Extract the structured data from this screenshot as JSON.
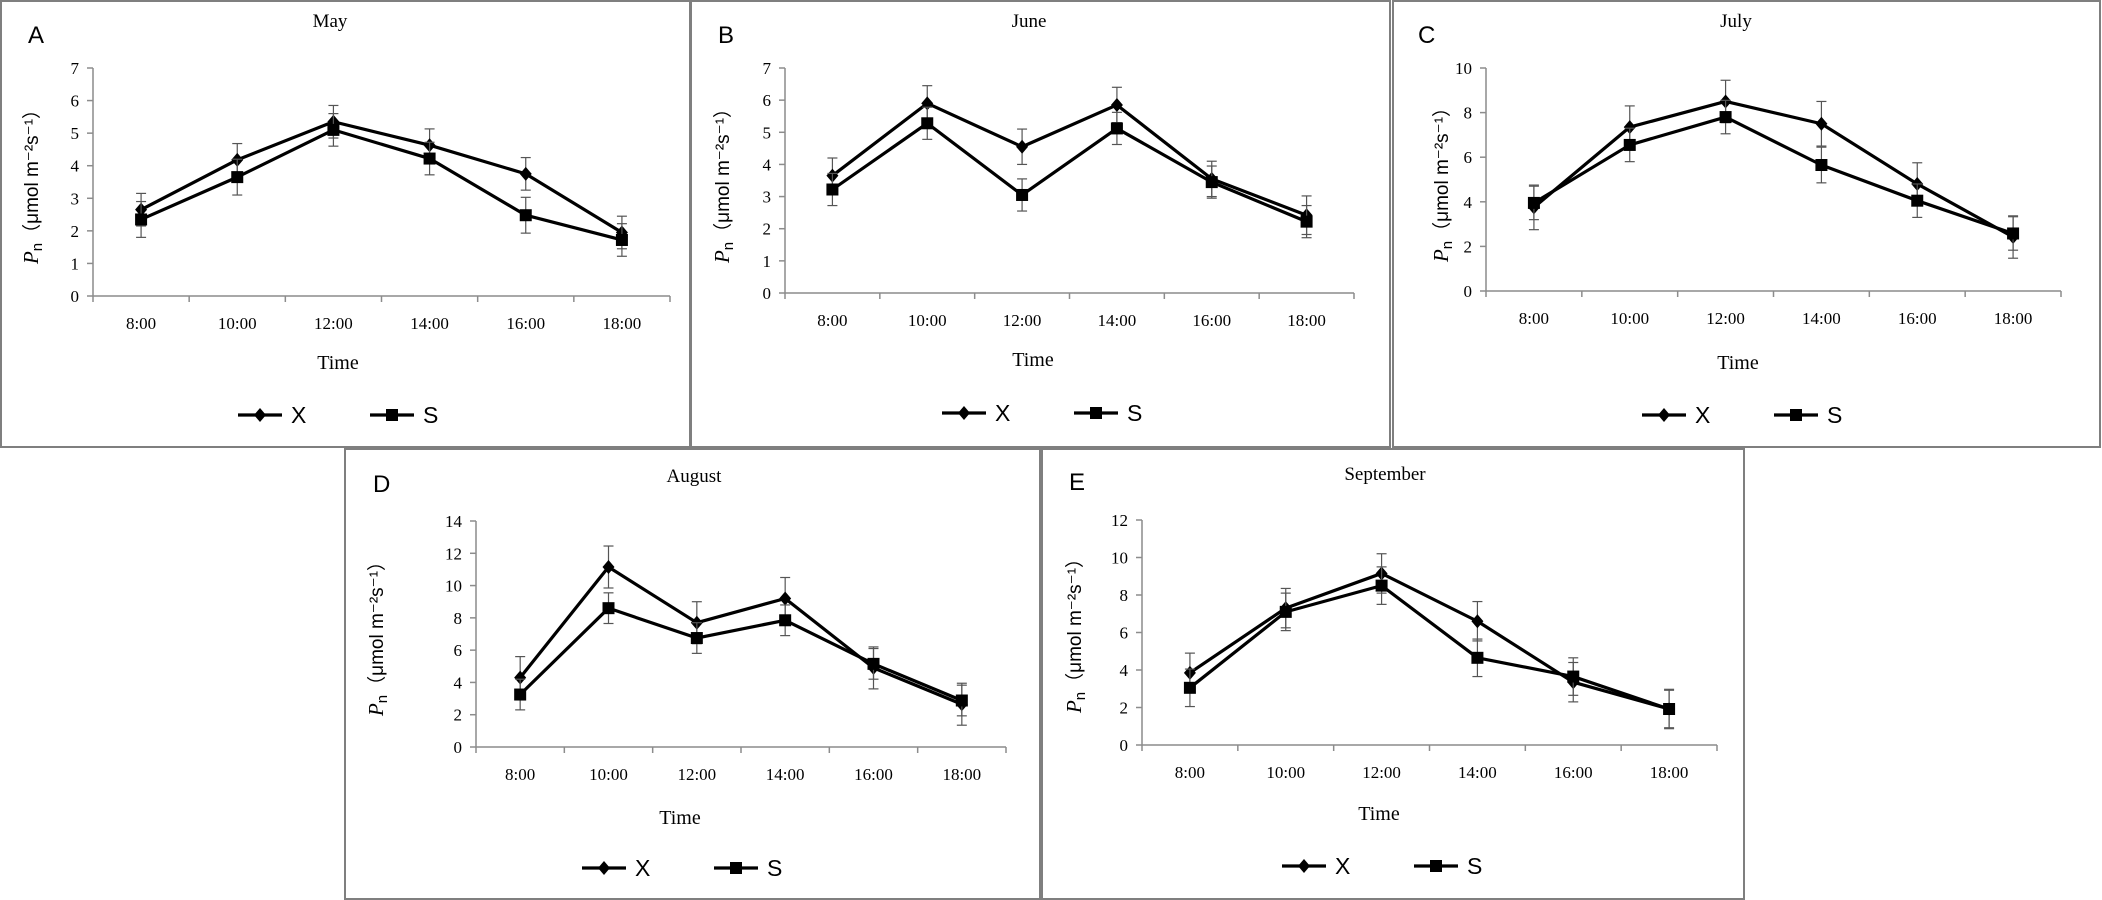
{
  "chart_data": [
    {
      "type": "line",
      "panel_label": "A",
      "title": "May",
      "xlabel": "Time",
      "ylabel": {
        "symbol": "P",
        "subscript": "n",
        "units": "（μmol m⁻²s⁻¹）"
      },
      "categories": [
        "8:00",
        "10:00",
        "12:00",
        "14:00",
        "16:00",
        "18:00"
      ],
      "ylim": [
        0,
        7
      ],
      "ystep": 1,
      "yticks": [
        "0",
        "1",
        "2",
        "3",
        "4",
        "5",
        "6",
        "7"
      ],
      "legend": "bottom",
      "series": [
        {
          "name": "X",
          "marker": "diamond",
          "values": [
            2.65,
            4.18,
            5.35,
            4.63,
            3.75,
            1.95
          ],
          "err": [
            0.5,
            0.5,
            0.5,
            0.5,
            0.5,
            0.5
          ]
        },
        {
          "name": "S",
          "marker": "square",
          "values": [
            2.35,
            3.65,
            5.1,
            4.22,
            2.48,
            1.72
          ],
          "err": [
            0.55,
            0.55,
            0.5,
            0.5,
            0.55,
            0.5
          ]
        }
      ]
    },
    {
      "type": "line",
      "panel_label": "B",
      "title": "June",
      "xlabel": "Time",
      "ylabel": {
        "symbol": "P",
        "subscript": "n",
        "units": "（μmol m⁻²s⁻¹）"
      },
      "categories": [
        "8:00",
        "10:00",
        "12:00",
        "14:00",
        "16:00",
        "18:00"
      ],
      "ylim": [
        0,
        7
      ],
      "ystep": 1,
      "yticks": [
        "0",
        "1",
        "2",
        "3",
        "4",
        "5",
        "6",
        "7"
      ],
      "legend": "bottom",
      "series": [
        {
          "name": "X",
          "marker": "diamond",
          "values": [
            3.65,
            5.9,
            4.55,
            5.85,
            3.55,
            2.42
          ],
          "err": [
            0.55,
            0.55,
            0.55,
            0.55,
            0.55,
            0.6
          ]
        },
        {
          "name": "S",
          "marker": "square",
          "values": [
            3.22,
            5.28,
            3.05,
            5.12,
            3.45,
            2.22
          ],
          "err": [
            0.5,
            0.5,
            0.5,
            0.5,
            0.5,
            0.5
          ]
        }
      ]
    },
    {
      "type": "line",
      "panel_label": "C",
      "title": "July",
      "xlabel": "Time",
      "ylabel": {
        "symbol": "P",
        "subscript": "n",
        "units": "（μmol m⁻²s⁻¹）"
      },
      "categories": [
        "8:00",
        "10:00",
        "12:00",
        "14:00",
        "16:00",
        "18:00"
      ],
      "ylim": [
        0,
        10
      ],
      "ystep": 2,
      "yticks": [
        "0",
        "2",
        "4",
        "6",
        "8",
        "10"
      ],
      "legend": "bottom",
      "series": [
        {
          "name": "X",
          "marker": "diamond",
          "values": [
            3.75,
            7.35,
            8.5,
            7.5,
            4.8,
            2.42
          ],
          "err": [
            1.0,
            0.95,
            0.95,
            1.0,
            0.95,
            0.95
          ]
        },
        {
          "name": "S",
          "marker": "square",
          "values": [
            3.95,
            6.55,
            7.8,
            5.65,
            4.05,
            2.58
          ],
          "err": [
            0.75,
            0.75,
            0.75,
            0.8,
            0.75,
            0.75
          ]
        }
      ]
    },
    {
      "type": "line",
      "panel_label": "D",
      "title": "August",
      "xlabel": "Time",
      "ylabel": {
        "symbol": "P",
        "subscript": "n",
        "units": "（μmol m⁻²s⁻¹）"
      },
      "categories": [
        "8:00",
        "10:00",
        "12:00",
        "14:00",
        "16:00",
        "18:00"
      ],
      "ylim": [
        0,
        14
      ],
      "ystep": 2,
      "yticks": [
        "0",
        "2",
        "4",
        "6",
        "8",
        "10",
        "12",
        "14"
      ],
      "legend": "bottom",
      "series": [
        {
          "name": "X",
          "marker": "diamond",
          "values": [
            4.3,
            11.15,
            7.7,
            9.2,
            4.9,
            2.65
          ],
          "err": [
            1.3,
            1.3,
            1.3,
            1.3,
            1.3,
            1.3
          ]
        },
        {
          "name": "S",
          "marker": "square",
          "values": [
            3.25,
            8.6,
            6.75,
            7.85,
            5.15,
            2.88
          ],
          "err": [
            0.95,
            0.95,
            0.95,
            0.95,
            0.95,
            0.95
          ]
        }
      ]
    },
    {
      "type": "line",
      "panel_label": "E",
      "title": "September",
      "xlabel": "Time",
      "ylabel": {
        "symbol": "P",
        "subscript": "n",
        "units": "（μmol m⁻²s⁻¹）"
      },
      "categories": [
        "8:00",
        "10:00",
        "12:00",
        "14:00",
        "16:00",
        "18:00"
      ],
      "ylim": [
        0,
        12
      ],
      "ystep": 2,
      "yticks": [
        "0",
        "2",
        "4",
        "6",
        "8",
        "10",
        "12"
      ],
      "legend": "bottom",
      "series": [
        {
          "name": "X",
          "marker": "diamond",
          "values": [
            3.85,
            7.3,
            9.15,
            6.6,
            3.35,
            1.92
          ],
          "err": [
            1.05,
            1.05,
            1.05,
            1.05,
            1.05,
            1.05
          ]
        },
        {
          "name": "S",
          "marker": "square",
          "values": [
            3.05,
            7.1,
            8.5,
            4.65,
            3.65,
            1.92
          ],
          "err": [
            1.0,
            1.0,
            1.0,
            1.0,
            1.0,
            1.0
          ]
        }
      ]
    }
  ]
}
